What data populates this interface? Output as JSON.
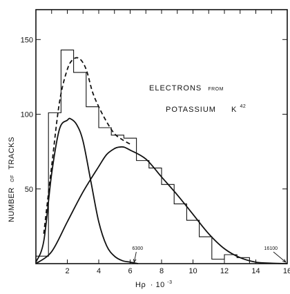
{
  "chart_data": {
    "type": "line",
    "annotation": {
      "line1_main": "ELECTRONS",
      "line1_small": "FROM",
      "line2_main": "POTASSIUM",
      "line2_sup": "K",
      "line2_sup_num": "42"
    },
    "xlabel": {
      "main": "Hρ",
      "suffix": "· 10",
      "exp": "-3"
    },
    "ylabel": {
      "part1": "NUMBER",
      "part2": "OF",
      "part3": "TRACKS"
    },
    "xlim": [
      0,
      16
    ],
    "ylim": [
      0,
      170
    ],
    "xticks": [
      2,
      4,
      6,
      8,
      10,
      12,
      14,
      16
    ],
    "yticks": [
      50,
      100,
      150
    ],
    "histogram": {
      "name": "histogram",
      "edges": [
        0,
        0.8,
        1.6,
        2.4,
        3.2,
        4,
        4.8,
        5.6,
        6.4,
        7.2,
        8,
        8.8,
        9.6,
        10.4,
        11.2,
        12,
        12.8,
        13.6,
        14.4,
        16
      ],
      "counts": [
        5,
        101,
        143,
        128,
        105,
        91,
        86,
        84,
        69,
        64,
        53,
        40,
        29,
        18,
        3,
        6,
        4,
        0,
        0
      ]
    },
    "series": [
      {
        "name": "low-energy-component",
        "style": "solid",
        "x": [
          0,
          0.5,
          1,
          1.5,
          2,
          2.2,
          2.6,
          3,
          3.5,
          4,
          4.5,
          5,
          5.5,
          6,
          6.5
        ],
        "y": [
          1,
          15,
          60,
          90,
          96,
          97,
          93,
          82,
          55,
          28,
          12,
          5,
          2,
          1,
          0
        ]
      },
      {
        "name": "high-energy-component",
        "style": "solid",
        "x": [
          0,
          1,
          2,
          3,
          4,
          4.5,
          5,
          5.3,
          5.6,
          6,
          7,
          8,
          9,
          10,
          11,
          12,
          13,
          14,
          15,
          16
        ],
        "y": [
          0,
          8,
          28,
          48,
          65,
          73,
          77,
          78,
          78,
          76,
          70,
          58,
          46,
          33,
          20,
          10,
          4,
          1,
          0.3,
          0
        ]
      },
      {
        "name": "sum-curve",
        "style": "dashed",
        "x": [
          0.5,
          1,
          1.5,
          2,
          2.4,
          2.8,
          3.2,
          3.6,
          4,
          4.5,
          5,
          5.5,
          6
        ],
        "y": [
          20,
          65,
          108,
          130,
          137,
          137,
          130,
          115,
          105,
          95,
          87,
          83,
          80
        ]
      }
    ],
    "endpoints": [
      {
        "label": "6300",
        "x": 6.3,
        "y": 0
      },
      {
        "label": "16100",
        "x": 16.0,
        "y": 0
      }
    ]
  }
}
